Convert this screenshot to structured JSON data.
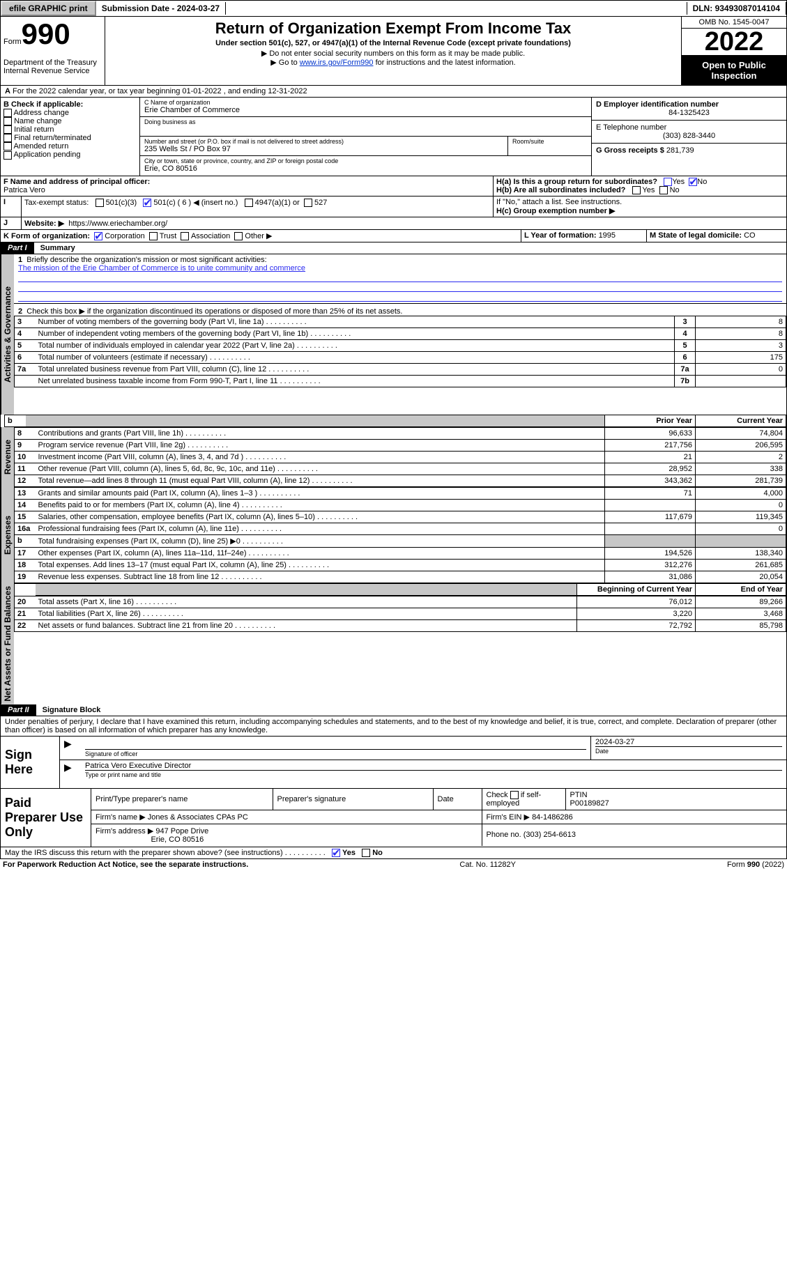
{
  "topbar": {
    "efile": "efile GRAPHIC print",
    "sub_label": "Submission Date - ",
    "sub_date": "2024-03-27",
    "dln_label": "DLN: ",
    "dln": "93493087014104"
  },
  "header": {
    "form_word": "Form",
    "form_num": "990",
    "dept1": "Department of the Treasury",
    "dept2": "Internal Revenue Service",
    "title": "Return of Organization Exempt From Income Tax",
    "sub1": "Under section 501(c), 527, or 4947(a)(1) of the Internal Revenue Code (except private foundations)",
    "sub2": "▶ Do not enter social security numbers on this form as it may be made public.",
    "sub3_pre": "▶ Go to ",
    "sub3_link": "www.irs.gov/Form990",
    "sub3_post": " for instructions and the latest information.",
    "omb": "OMB No. 1545-0047",
    "year": "2022",
    "open_pub": "Open to Public Inspection"
  },
  "a_line": "For the 2022 calendar year, or tax year beginning 01-01-2022    , and ending 12-31-2022",
  "sectionB": {
    "b_label": "B Check if applicable:",
    "b_opts": [
      "Address change",
      "Name change",
      "Initial return",
      "Final return/terminated",
      "Amended return",
      "Application pending"
    ],
    "c_name_label": "C Name of organization",
    "c_name": "Erie Chamber of Commerce",
    "dba_label": "Doing business as",
    "addr_label": "Number and street (or P.O. box if mail is not delivered to street address)",
    "room_label": "Room/suite",
    "addr": "235 Wells St / PO Box 97",
    "city_label": "City or town, state or province, country, and ZIP or foreign postal code",
    "city": "Erie, CO  80516",
    "d_label": "D Employer identification number",
    "d_val": "84-1325423",
    "e_label": "E Telephone number",
    "e_val": "(303) 828-3440",
    "g_label": "G Gross receipts $ ",
    "g_val": "281,739",
    "f_label": "F  Name and address of principal officer:",
    "f_val": "Patrica Vero",
    "ha": "H(a)  Is this a group return for subordinates?",
    "hb": "H(b)  Are all subordinates included?",
    "hb_note": "If \"No,\" attach a list. See instructions.",
    "hc": "H(c)  Group exemption number ▶",
    "yes": "Yes",
    "no": "No"
  },
  "i_line": {
    "label": "Tax-exempt status:",
    "o1": "501(c)(3)",
    "o2": "501(c) ( 6 ) ◀ (insert no.)",
    "o3": "4947(a)(1) or",
    "o4": "527"
  },
  "j_line": {
    "label": "Website: ▶",
    "val": "https://www.eriechamber.org/"
  },
  "k_line": {
    "label": "K Form of organization:",
    "corp": "Corporation",
    "trust": "Trust",
    "assoc": "Association",
    "other": "Other ▶",
    "l_label": "L Year of formation: ",
    "l_val": "1995",
    "m_label": "M State of legal domicile: ",
    "m_val": "CO"
  },
  "part1": {
    "bar": "Part I",
    "title": "Summary"
  },
  "mission": {
    "q": "Briefly describe the organization's mission or most significant activities:",
    "text": "The mission of the Erie Chamber of Commerce is to unite community and commerce"
  },
  "line2": "Check this box ▶       if the organization discontinued its operations or disposed of more than 25% of its net assets.",
  "sides": {
    "gov": "Activities & Governance",
    "rev": "Revenue",
    "exp": "Expenses",
    "nab": "Net Assets or Fund Balances"
  },
  "gov_rows": [
    {
      "n": "3",
      "d": "Number of voting members of the governing body (Part VI, line 1a)",
      "b": "3",
      "v": "8"
    },
    {
      "n": "4",
      "d": "Number of independent voting members of the governing body (Part VI, line 1b)",
      "b": "4",
      "v": "8"
    },
    {
      "n": "5",
      "d": "Total number of individuals employed in calendar year 2022 (Part V, line 2a)",
      "b": "5",
      "v": "3"
    },
    {
      "n": "6",
      "d": "Total number of volunteers (estimate if necessary)",
      "b": "6",
      "v": "175"
    },
    {
      "n": "7a",
      "d": "Total unrelated business revenue from Part VIII, column (C), line 12",
      "b": "7a",
      "v": "0"
    },
    {
      "n": "",
      "d": "Net unrelated business taxable income from Form 990-T, Part I, line 11",
      "b": "7b",
      "v": ""
    }
  ],
  "col_head": {
    "b": "b",
    "prior": "Prior Year",
    "curr": "Current Year"
  },
  "rev_rows": [
    {
      "n": "8",
      "d": "Contributions and grants (Part VIII, line 1h)",
      "p": "96,633",
      "c": "74,804"
    },
    {
      "n": "9",
      "d": "Program service revenue (Part VIII, line 2g)",
      "p": "217,756",
      "c": "206,595"
    },
    {
      "n": "10",
      "d": "Investment income (Part VIII, column (A), lines 3, 4, and 7d )",
      "p": "21",
      "c": "2"
    },
    {
      "n": "11",
      "d": "Other revenue (Part VIII, column (A), lines 5, 6d, 8c, 9c, 10c, and 11e)",
      "p": "28,952",
      "c": "338"
    },
    {
      "n": "12",
      "d": "Total revenue—add lines 8 through 11 (must equal Part VIII, column (A), line 12)",
      "p": "343,362",
      "c": "281,739"
    }
  ],
  "exp_rows": [
    {
      "n": "13",
      "d": "Grants and similar amounts paid (Part IX, column (A), lines 1–3 )",
      "p": "71",
      "c": "4,000"
    },
    {
      "n": "14",
      "d": "Benefits paid to or for members (Part IX, column (A), line 4)",
      "p": "",
      "c": "0"
    },
    {
      "n": "15",
      "d": "Salaries, other compensation, employee benefits (Part IX, column (A), lines 5–10)",
      "p": "117,679",
      "c": "119,345"
    },
    {
      "n": "16a",
      "d": "Professional fundraising fees (Part IX, column (A), line 11e)",
      "p": "",
      "c": "0"
    },
    {
      "n": "b",
      "d": "Total fundraising expenses (Part IX, column (D), line 25) ▶0",
      "p": "__SHADE__",
      "c": "__SHADE__"
    },
    {
      "n": "17",
      "d": "Other expenses (Part IX, column (A), lines 11a–11d, 11f–24e)",
      "p": "194,526",
      "c": "138,340"
    },
    {
      "n": "18",
      "d": "Total expenses. Add lines 13–17 (must equal Part IX, column (A), line 25)",
      "p": "312,276",
      "c": "261,685"
    },
    {
      "n": "19",
      "d": "Revenue less expenses. Subtract line 18 from line 12",
      "p": "31,086",
      "c": "20,054"
    }
  ],
  "nab_head": {
    "b": "Beginning of Current Year",
    "e": "End of Year"
  },
  "nab_rows": [
    {
      "n": "20",
      "d": "Total assets (Part X, line 16)",
      "p": "76,012",
      "c": "89,266"
    },
    {
      "n": "21",
      "d": "Total liabilities (Part X, line 26)",
      "p": "3,220",
      "c": "3,468"
    },
    {
      "n": "22",
      "d": "Net assets or fund balances. Subtract line 21 from line 20",
      "p": "72,792",
      "c": "85,798"
    }
  ],
  "part2": {
    "bar": "Part II",
    "title": "Signature Block"
  },
  "penalty": "Under penalties of perjury, I declare that I have examined this return, including accompanying schedules and statements, and to the best of my knowledge and belief, it is true, correct, and complete. Declaration of preparer (other than officer) is based on all information of which preparer has any knowledge.",
  "sign": {
    "left": "Sign Here",
    "sig_label": "Signature of officer",
    "date_label": "Date",
    "date_val": "2024-03-27",
    "name": "Patrica Vero  Executive Director",
    "name_label": "Type or print name and title"
  },
  "prep": {
    "left": "Paid Preparer Use Only",
    "h1": "Print/Type preparer's name",
    "h2": "Preparer's signature",
    "h3": "Date",
    "h4_pre": "Check",
    "h4_post": "if self-employed",
    "h5": "PTIN",
    "h5v": "P00189827",
    "firm_l": "Firm's name    ▶ ",
    "firm_v": "Jones & Associates CPAs PC",
    "ein_l": "Firm's EIN ▶ ",
    "ein_v": "84-1486286",
    "addr_l": "Firm's address ▶ ",
    "addr_v": "947 Pope Drive",
    "addr_v2": "Erie, CO  80516",
    "phone_l": "Phone no. ",
    "phone_v": "(303) 254-6613"
  },
  "may_irs": "May the IRS discuss this return with the preparer shown above? (see instructions)",
  "foot": {
    "l": "For Paperwork Reduction Act Notice, see the separate instructions.",
    "m": "Cat. No. 11282Y",
    "r": "Form 990 (2022)"
  }
}
